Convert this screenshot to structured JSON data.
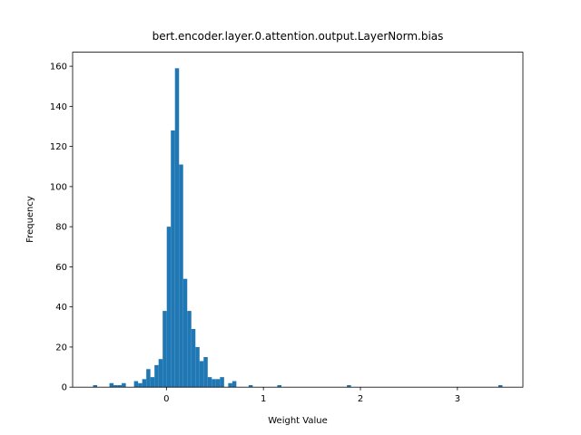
{
  "chart_data": {
    "type": "histogram",
    "title": "bert.encoder.layer.0.attention.output.LayerNorm.bias",
    "x_label": "Weight Value",
    "y_label": "Frequency",
    "color": "#1f77b4",
    "bins": [
      -0.756,
      -0.7138,
      -0.6716,
      -0.6294,
      -0.5872,
      -0.545,
      -0.5028,
      -0.4606,
      -0.4184,
      -0.3762,
      -0.334,
      -0.2918,
      -0.2496,
      -0.2074,
      -0.1652,
      -0.123,
      -0.0808,
      -0.0386,
      0.0036,
      0.0458,
      0.088,
      0.1302,
      0.1724,
      0.2146,
      0.2568,
      0.299,
      0.3412,
      0.3834,
      0.4256,
      0.4678,
      0.51,
      0.5522,
      0.5944,
      0.6366,
      0.6788,
      0.721,
      0.7632,
      0.8054,
      0.8476,
      0.8898,
      0.932,
      0.9742,
      1.0164,
      1.0586,
      1.1008,
      1.143,
      1.1852,
      1.2274,
      1.2696,
      1.3118,
      1.354,
      1.3962,
      1.4384,
      1.4806,
      1.5228,
      1.565,
      1.6072,
      1.6494,
      1.6916,
      1.7338,
      1.776,
      1.8182,
      1.8604,
      1.9026,
      1.9448,
      1.987,
      2.0292,
      2.0714,
      2.1136,
      2.1558,
      2.198,
      2.2402,
      2.2824,
      2.3246,
      2.3668,
      2.409,
      2.4512,
      2.4934,
      2.5356,
      2.5778,
      2.62,
      2.6622,
      2.7044,
      2.7466,
      2.7888,
      2.831,
      2.8732,
      2.9154,
      2.9576,
      2.9998,
      3.042,
      3.0842,
      3.1264,
      3.1686,
      3.2108,
      3.253,
      3.2952,
      3.3374,
      3.3796,
      3.4218,
      3.464
    ],
    "values": [
      1,
      0,
      0,
      0,
      2,
      1,
      1,
      2,
      0,
      0,
      3,
      2,
      4,
      9,
      5,
      11,
      14,
      38,
      80,
      128,
      159,
      111,
      54,
      38,
      29,
      20,
      13,
      15,
      5,
      4,
      4,
      5,
      0,
      2,
      3,
      0,
      0,
      0,
      1,
      0,
      0,
      0,
      0,
      0,
      0,
      1,
      0,
      0,
      0,
      0,
      0,
      0,
      0,
      0,
      0,
      0,
      0,
      0,
      0,
      0,
      0,
      0,
      1,
      0,
      0,
      0,
      0,
      0,
      0,
      0,
      0,
      0,
      0,
      0,
      0,
      0,
      0,
      0,
      0,
      0,
      0,
      0,
      0,
      0,
      0,
      0,
      0,
      0,
      0,
      0,
      0,
      0,
      0,
      0,
      0,
      0,
      0,
      0,
      0,
      1
    ],
    "xlim": [
      -0.967,
      3.675
    ],
    "xticks": [
      0,
      1,
      2,
      3
    ],
    "ylim": [
      0,
      167
    ],
    "yticks": [
      0,
      20,
      40,
      60,
      80,
      100,
      120,
      140,
      160
    ]
  }
}
